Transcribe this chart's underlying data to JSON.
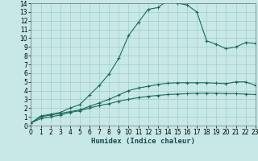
{
  "xlabel": "Humidex (Indice chaleur)",
  "bg_color": "#c8e8e8",
  "grid_color": "#a0cccc",
  "line_color": "#1a6b5a",
  "line1_x": [
    0,
    1,
    2,
    3,
    4,
    5,
    6,
    7,
    8,
    9,
    10,
    11,
    12,
    13,
    14,
    15,
    16,
    17,
    18,
    19,
    20,
    21,
    22,
    23
  ],
  "line1_y": [
    0.3,
    1.1,
    1.3,
    1.5,
    2.0,
    2.4,
    3.5,
    4.6,
    5.9,
    7.7,
    10.3,
    11.8,
    13.3,
    13.5,
    14.3,
    14.0,
    13.8,
    13.0,
    9.7,
    9.3,
    8.8,
    9.0,
    9.5,
    9.4
  ],
  "line2_x": [
    0,
    1,
    2,
    3,
    4,
    5,
    6,
    7,
    8,
    9,
    10,
    11,
    12,
    13,
    14,
    15,
    16,
    17,
    18,
    19,
    20,
    21,
    22,
    23
  ],
  "line2_y": [
    0.3,
    1.0,
    1.2,
    1.4,
    1.6,
    1.8,
    2.2,
    2.6,
    3.0,
    3.5,
    4.0,
    4.3,
    4.5,
    4.7,
    4.85,
    4.9,
    4.9,
    4.9,
    4.9,
    4.85,
    4.8,
    5.0,
    5.0,
    4.6
  ],
  "line3_x": [
    0,
    1,
    2,
    3,
    4,
    5,
    6,
    7,
    8,
    9,
    10,
    11,
    12,
    13,
    14,
    15,
    16,
    17,
    18,
    19,
    20,
    21,
    22,
    23
  ],
  "line3_y": [
    0.3,
    0.8,
    1.0,
    1.2,
    1.5,
    1.7,
    2.0,
    2.3,
    2.5,
    2.8,
    3.0,
    3.2,
    3.35,
    3.45,
    3.55,
    3.6,
    3.65,
    3.7,
    3.7,
    3.7,
    3.65,
    3.65,
    3.6,
    3.55
  ],
  "xlim": [
    0,
    23
  ],
  "ylim": [
    0,
    14
  ],
  "xticks": [
    0,
    1,
    2,
    3,
    4,
    5,
    6,
    7,
    8,
    9,
    10,
    11,
    12,
    13,
    14,
    15,
    16,
    17,
    18,
    19,
    20,
    21,
    22,
    23
  ],
  "yticks": [
    0,
    1,
    2,
    3,
    4,
    5,
    6,
    7,
    8,
    9,
    10,
    11,
    12,
    13,
    14
  ],
  "tick_fontsize": 5.5,
  "xlabel_fontsize": 6.5
}
